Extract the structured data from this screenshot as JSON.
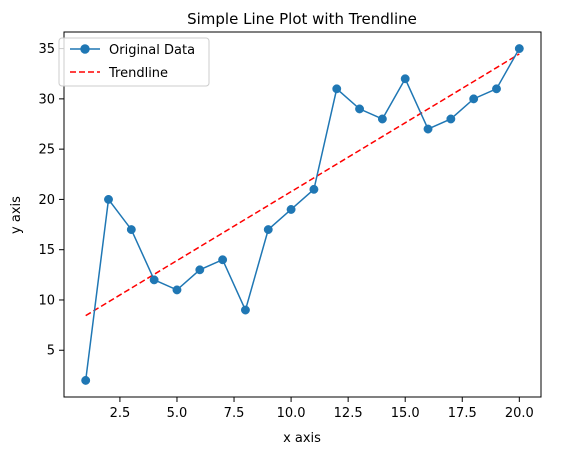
{
  "chart_data": {
    "type": "line",
    "title": "Simple Line Plot with Trendline",
    "xlabel": "x axis",
    "ylabel": "y axis",
    "xlim": [
      0.05,
      20.95
    ],
    "ylim": [
      0.35,
      36.65
    ],
    "xticks": [
      2.5,
      5.0,
      7.5,
      10.0,
      12.5,
      15.0,
      17.5,
      20.0
    ],
    "xtick_labels": [
      "2.5",
      "5.0",
      "7.5",
      "10.0",
      "12.5",
      "15.0",
      "17.5",
      "20.0"
    ],
    "yticks": [
      5,
      10,
      15,
      20,
      25,
      30,
      35
    ],
    "ytick_labels": [
      "5",
      "10",
      "15",
      "20",
      "25",
      "30",
      "35"
    ],
    "grid": false,
    "legend_position": "top-left",
    "x": [
      1,
      2,
      3,
      4,
      5,
      6,
      7,
      8,
      9,
      10,
      11,
      12,
      13,
      14,
      15,
      16,
      17,
      18,
      19,
      20
    ],
    "series": [
      {
        "name": "Original Data",
        "style": "solid line with circle markers",
        "color": "#1f77b4",
        "values": [
          2,
          20,
          17,
          12,
          11,
          13,
          14,
          9,
          17,
          19,
          21,
          31,
          29,
          28,
          32,
          27,
          28,
          30,
          31,
          35
        ]
      },
      {
        "name": "Trendline",
        "style": "dashed",
        "color": "#ff0000",
        "values": [
          8.44,
          9.81,
          11.18,
          12.55,
          13.92,
          15.29,
          16.66,
          18.03,
          19.4,
          20.77,
          22.14,
          23.51,
          24.88,
          26.25,
          27.62,
          28.99,
          30.36,
          31.73,
          33.1,
          34.47
        ]
      }
    ]
  }
}
